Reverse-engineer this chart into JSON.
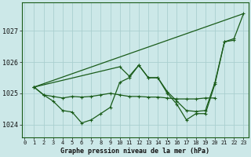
{
  "background_color": "#cce8e8",
  "grid_color": "#aacfcf",
  "line_color": "#1a5c1a",
  "title": "Graphe pression niveau de la mer (hPa)",
  "ylim": [
    1023.6,
    1027.9
  ],
  "yticks": [
    1024,
    1025,
    1026,
    1027
  ],
  "hours": [
    0,
    1,
    2,
    3,
    4,
    5,
    6,
    7,
    8,
    9,
    10,
    11,
    12,
    13,
    14,
    15,
    16,
    17,
    18,
    19,
    20,
    21,
    22,
    23
  ],
  "series_diagonal": {
    "x": [
      1,
      23
    ],
    "y": [
      1025.2,
      1027.55
    ]
  },
  "series_flat": {
    "x": [
      1,
      2,
      3,
      4,
      5,
      6,
      7,
      8,
      9,
      10,
      11,
      12,
      13,
      14,
      15,
      16,
      17,
      18,
      19,
      20
    ],
    "y": [
      1025.2,
      1024.95,
      1024.9,
      1024.85,
      1024.9,
      1024.88,
      1024.9,
      1024.95,
      1025.0,
      1024.95,
      1024.9,
      1024.9,
      1024.88,
      1024.88,
      1024.85,
      1024.82,
      1024.82,
      1024.82,
      1024.85,
      1024.85
    ]
  },
  "series_volatile": {
    "x": [
      1,
      2,
      3,
      4,
      5,
      6,
      7,
      8,
      9,
      10,
      11,
      12,
      13,
      14,
      15,
      16,
      17,
      18,
      19,
      20,
      21,
      22
    ],
    "y": [
      1025.2,
      1024.95,
      1024.75,
      1024.45,
      1024.4,
      1024.05,
      1024.15,
      1024.35,
      1024.55,
      1025.35,
      1025.5,
      1025.9,
      1025.5,
      1025.5,
      1025.0,
      1024.65,
      1024.15,
      1024.35,
      1024.35,
      1025.3,
      1026.65,
      1026.7
    ]
  },
  "series_rising": {
    "x": [
      1,
      10,
      11,
      12,
      13,
      14,
      15,
      16,
      17,
      18,
      19,
      20,
      21,
      22,
      23
    ],
    "y": [
      1025.2,
      1025.85,
      1025.55,
      1025.9,
      1025.5,
      1025.5,
      1025.05,
      1024.75,
      1024.45,
      1024.42,
      1024.45,
      1025.35,
      1026.65,
      1026.75,
      1027.55
    ]
  }
}
